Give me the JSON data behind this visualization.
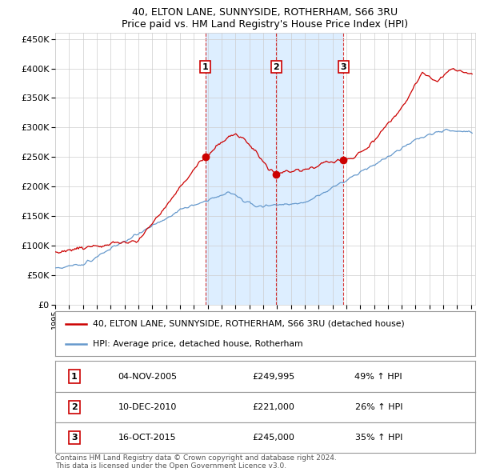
{
  "title": "40, ELTON LANE, SUNNYSIDE, ROTHERHAM, S66 3RU",
  "subtitle": "Price paid vs. HM Land Registry's House Price Index (HPI)",
  "ylabel_ticks": [
    "£0",
    "£50K",
    "£100K",
    "£150K",
    "£200K",
    "£250K",
    "£300K",
    "£350K",
    "£400K",
    "£450K"
  ],
  "ytick_values": [
    0,
    50000,
    100000,
    150000,
    200000,
    250000,
    300000,
    350000,
    400000,
    450000
  ],
  "ylim": [
    0,
    460000
  ],
  "xlim_start": 1995,
  "xlim_end": 2025.3,
  "sale_year_floats": [
    2005.836,
    2010.944,
    2015.792
  ],
  "sale_prices": [
    249995,
    221000,
    245000
  ],
  "sale_labels": [
    "1",
    "2",
    "3"
  ],
  "legend_line1": "40, ELTON LANE, SUNNYSIDE, ROTHERHAM, S66 3RU (detached house)",
  "legend_line2": "HPI: Average price, detached house, Rotherham",
  "table_rows": [
    {
      "label": "1",
      "date": "04-NOV-2005",
      "price": "£249,995",
      "hpi": "49% ↑ HPI"
    },
    {
      "label": "2",
      "date": "10-DEC-2010",
      "price": "£221,000",
      "hpi": "26% ↑ HPI"
    },
    {
      "label": "3",
      "date": "16-OCT-2015",
      "price": "£245,000",
      "hpi": "35% ↑ HPI"
    }
  ],
  "footer": "Contains HM Land Registry data © Crown copyright and database right 2024.\nThis data is licensed under the Open Government Licence v3.0.",
  "red_color": "#cc0000",
  "blue_color": "#6699cc",
  "shade_color": "#ddeeff",
  "background_color": "#ffffff",
  "grid_color": "#cccccc"
}
